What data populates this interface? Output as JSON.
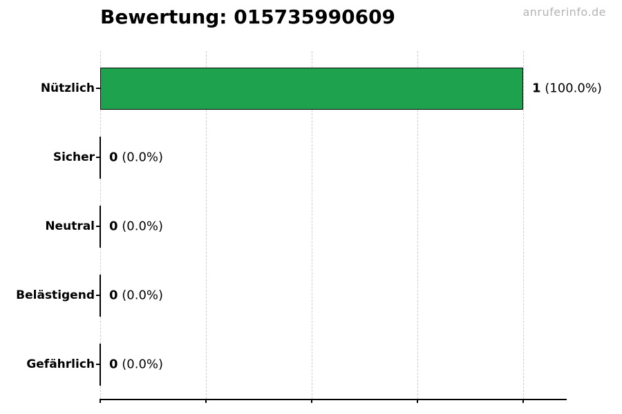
{
  "watermark": "anruferinfo.de",
  "chart_data": {
    "type": "bar",
    "orientation": "horizontal",
    "title": "Bewertung: 015735990609",
    "categories": [
      "Nützlich",
      "Sicher",
      "Neutral",
      "Belästigend",
      "Gefährlich"
    ],
    "values": [
      1,
      0,
      0,
      0,
      0
    ],
    "value_labels": [
      {
        "count": "1",
        "percent": "(100.0%)"
      },
      {
        "count": "0",
        "percent": "(0.0%)"
      },
      {
        "count": "0",
        "percent": "(0.0%)"
      },
      {
        "count": "0",
        "percent": "(0.0%)"
      },
      {
        "count": "0",
        "percent": "(0.0%)"
      }
    ],
    "xlim": [
      0,
      1.1
    ],
    "x_ticks": [
      0,
      0.25,
      0.5,
      0.75,
      1.0
    ],
    "x_tick_labels_visible": false,
    "grid": "vertical-dashed",
    "legend": "none",
    "bar_color": "#1fa24d",
    "bar_edge_color": "#000000",
    "grid_color": "#cbcbcb",
    "axis_color": "#000000",
    "watermark_color": "#b4b4b4"
  }
}
